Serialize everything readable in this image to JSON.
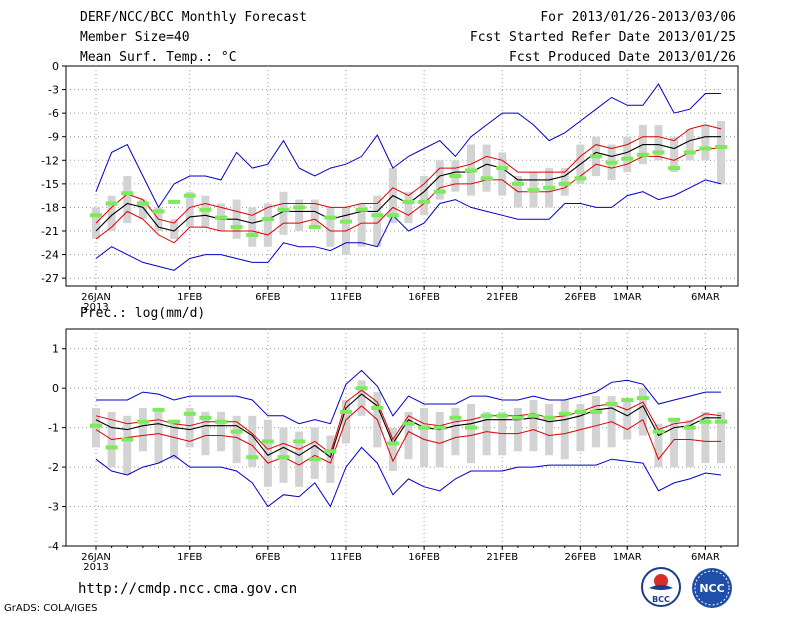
{
  "header": {
    "left": [
      "DERF/NCC/BCC Monthly Forecast",
      "Member Size=40",
      "Mean Surf. Temp.: °C"
    ],
    "right": [
      "For 2013/01/26-2013/03/06",
      "Fcst Started Refer Date 2013/01/25",
      "Fcst Produced Date 2013/01/26"
    ]
  },
  "footer": {
    "url": "http://cmdp.ncc.cma.gov.cn",
    "credit": "GrADS: COLA/IGES",
    "logo_left_text": "BCC",
    "logo_right_text": "NCC"
  },
  "colors": {
    "envelope": "#0000cc",
    "spread": "#dd0000",
    "mean": "#000000",
    "bar": "#d3d3d3",
    "marker": "#7cea5a",
    "grid": "#9a9a9a"
  },
  "chart_data": [
    {
      "type": "line",
      "title": "Mean Surf. Temp.: °C",
      "ylim": [
        -28,
        0
      ],
      "yticks": [
        0,
        -3,
        -6,
        -9,
        -12,
        -15,
        -18,
        -21,
        -24,
        -27
      ],
      "x_days": 40,
      "xticks": [
        {
          "day": 0,
          "label": "26JAN",
          "sub": "2013"
        },
        {
          "day": 6,
          "label": "1FEB"
        },
        {
          "day": 11,
          "label": "6FEB"
        },
        {
          "day": 16,
          "label": "11FEB"
        },
        {
          "day": 21,
          "label": "16FEB"
        },
        {
          "day": 26,
          "label": "21FEB"
        },
        {
          "day": 31,
          "label": "26FEB"
        },
        {
          "day": 34,
          "label": "1MAR"
        },
        {
          "day": 39,
          "label": "6MAR"
        }
      ],
      "series": [
        {
          "name": "max",
          "values": [
            -16,
            -11,
            -10,
            -14,
            -18,
            -15,
            -14,
            -14,
            -14.5,
            -11,
            -13,
            -12.5,
            -9.5,
            -13,
            -14,
            -13,
            -12.5,
            -11.5,
            -8.8,
            -13,
            -11.5,
            -10.5,
            -9.5,
            -11.5,
            -9,
            -7.5,
            -6,
            -6,
            -7.5,
            -9.5,
            -8.5,
            -7,
            -5.5,
            -4,
            -5,
            -5,
            -2.3,
            -6,
            -5.5,
            -3.5,
            -3.5
          ]
        },
        {
          "name": "upper",
          "values": [
            -20,
            -18,
            -16.3,
            -17,
            -19.5,
            -20,
            -18,
            -17.5,
            -18,
            -18.5,
            -19,
            -18,
            -17.5,
            -17.5,
            -17.5,
            -18,
            -18,
            -17.5,
            -17.5,
            -15.5,
            -16.5,
            -15,
            -13,
            -13,
            -12.5,
            -11.5,
            -12,
            -13.5,
            -13.5,
            -13.5,
            -13.5,
            -11.5,
            -10,
            -10.5,
            -10,
            -9,
            -9,
            -9.5,
            -8,
            -7.5,
            -8
          ]
        },
        {
          "name": "mean",
          "values": [
            -21,
            -19,
            -17.5,
            -18,
            -20.5,
            -21,
            -19.2,
            -19,
            -19.5,
            -19.5,
            -20,
            -19.5,
            -18.5,
            -18.5,
            -18.5,
            -19.5,
            -19,
            -18.5,
            -18.5,
            -16.5,
            -17.5,
            -16,
            -14,
            -13.5,
            -13.5,
            -12.5,
            -13,
            -14.5,
            -14.5,
            -14.5,
            -14,
            -12.5,
            -11,
            -11.5,
            -11,
            -10,
            -10,
            -10.5,
            -9.5,
            -9,
            -9
          ]
        },
        {
          "name": "lower",
          "values": [
            -22,
            -20.5,
            -18.5,
            -19.5,
            -21.5,
            -22.5,
            -20.5,
            -20.5,
            -21,
            -21,
            -21,
            -21.5,
            -20,
            -20,
            -19.5,
            -21,
            -21,
            -20,
            -20,
            -18,
            -19,
            -17.5,
            -15.5,
            -15,
            -15,
            -14.5,
            -14.5,
            -16,
            -16,
            -16,
            -15.5,
            -14,
            -12.5,
            -13,
            -12.5,
            -11.5,
            -11.5,
            -12,
            -11,
            -10.5,
            -10.5
          ]
        },
        {
          "name": "min",
          "values": [
            -24.5,
            -23,
            -24,
            -25,
            -25.5,
            -26,
            -24.5,
            -24,
            -24,
            -24.5,
            -25,
            -25,
            -22.5,
            -23,
            -23,
            -23.5,
            -22.5,
            -22.5,
            -23,
            -19,
            -21,
            -20,
            -17.5,
            -17,
            -18,
            -18.5,
            -19,
            -19.5,
            -19.5,
            -19.5,
            -17.5,
            -17.5,
            -18,
            -18,
            -16.5,
            -16,
            -17,
            -16.5,
            -15.5,
            -14.5,
            -15
          ]
        }
      ],
      "bars": [
        [
          -22,
          -18
        ],
        [
          -21,
          -16.5
        ],
        [
          -20,
          -14
        ],
        [
          -19.5,
          -17
        ],
        [
          -21,
          -18
        ],
        [
          -22,
          -19.5
        ],
        [
          -20.5,
          -16
        ],
        [
          -20.5,
          -16.5
        ],
        [
          -21,
          -17.5
        ],
        [
          -22,
          -17
        ],
        [
          -23,
          -18
        ],
        [
          -23,
          -17.5
        ],
        [
          -21.5,
          -16
        ],
        [
          -21,
          -17
        ],
        [
          -20.5,
          -17
        ],
        [
          -23,
          -18
        ],
        [
          -24,
          -18
        ],
        [
          -23,
          -17.5
        ],
        [
          -23,
          -16.5
        ],
        [
          -20,
          -13
        ],
        [
          -20,
          -16
        ],
        [
          -19,
          -14
        ],
        [
          -17,
          -12
        ],
        [
          -16,
          -12
        ],
        [
          -16.5,
          -10
        ],
        [
          -16,
          -10
        ],
        [
          -16.5,
          -11
        ],
        [
          -18,
          -14
        ],
        [
          -18,
          -13.5
        ],
        [
          -18,
          -13
        ],
        [
          -16.5,
          -13
        ],
        [
          -15,
          -10
        ],
        [
          -14,
          -9
        ],
        [
          -14.5,
          -10
        ],
        [
          -13.5,
          -9
        ],
        [
          -12.5,
          -7.5
        ],
        [
          -12,
          -7.5
        ],
        [
          -13.5,
          -9
        ],
        [
          -12,
          -8
        ],
        [
          -12,
          -7.5
        ],
        [
          -15,
          -7
        ]
      ],
      "markers": [
        -19,
        -17.5,
        -16.2,
        -17.5,
        -18.5,
        -17.3,
        -16.5,
        -18.3,
        -19.3,
        -20.5,
        -21.5,
        -19.5,
        -18.3,
        -18,
        -20.5,
        -19.3,
        -19.8,
        -18.3,
        -19,
        -19,
        -17.3,
        -17.3,
        -16,
        -14,
        -13.3,
        -14.3,
        -13,
        -15,
        -15.8,
        -15.5,
        -15,
        -14.3,
        -11.5,
        -12.3,
        -11.8,
        -11.3,
        -11,
        -13,
        -11,
        -10.5,
        -10.3
      ]
    },
    {
      "type": "line",
      "title": "Prec.: log(mm/d)",
      "ylim": [
        -4,
        1.5
      ],
      "yticks": [
        1,
        0,
        -1,
        -2,
        -3,
        -4
      ],
      "x_days": 40,
      "xticks": [
        {
          "day": 0,
          "label": "26JAN",
          "sub": "2013"
        },
        {
          "day": 6,
          "label": "1FEB"
        },
        {
          "day": 11,
          "label": "6FEB"
        },
        {
          "day": 16,
          "label": "11FEB"
        },
        {
          "day": 21,
          "label": "16FEB"
        },
        {
          "day": 26,
          "label": "21FEB"
        },
        {
          "day": 31,
          "label": "26FEB"
        },
        {
          "day": 34,
          "label": "1MAR"
        },
        {
          "day": 39,
          "label": "6MAR"
        }
      ],
      "series": [
        {
          "name": "max",
          "values": [
            -0.3,
            -0.3,
            -0.3,
            -0.1,
            -0.15,
            -0.3,
            -0.2,
            -0.2,
            -0.2,
            -0.2,
            -0.3,
            -0.7,
            -0.7,
            -0.9,
            -0.8,
            -0.9,
            0.1,
            0.45,
            0.05,
            -0.7,
            -0.2,
            -0.4,
            -0.4,
            -0.4,
            -0.2,
            -0.2,
            -0.3,
            -0.3,
            -0.2,
            -0.3,
            -0.3,
            -0.2,
            -0.1,
            0.15,
            0.2,
            0.1,
            -0.4,
            -0.3,
            -0.2,
            -0.1,
            -0.1
          ]
        },
        {
          "name": "upper",
          "values": [
            -0.7,
            -0.8,
            -0.9,
            -0.85,
            -0.8,
            -0.9,
            -0.95,
            -0.85,
            -0.85,
            -0.85,
            -1.15,
            -1.55,
            -1.4,
            -1.55,
            -1.35,
            -1.65,
            -0.35,
            -0.05,
            -0.35,
            -1.3,
            -0.7,
            -0.9,
            -0.95,
            -0.85,
            -0.8,
            -0.7,
            -0.7,
            -0.7,
            -0.65,
            -0.75,
            -0.7,
            -0.6,
            -0.45,
            -0.4,
            -0.55,
            -0.35,
            -1.05,
            -0.9,
            -0.85,
            -0.65,
            -0.7
          ]
        },
        {
          "name": "mean",
          "values": [
            -0.8,
            -1.0,
            -1.05,
            -0.95,
            -0.9,
            -1.0,
            -1.05,
            -0.95,
            -0.95,
            -0.95,
            -1.2,
            -1.7,
            -1.5,
            -1.7,
            -1.45,
            -1.75,
            -0.5,
            -0.15,
            -0.45,
            -1.4,
            -0.8,
            -1.0,
            -1.05,
            -0.95,
            -0.9,
            -0.8,
            -0.8,
            -0.8,
            -0.75,
            -0.85,
            -0.8,
            -0.7,
            -0.55,
            -0.5,
            -0.7,
            -0.45,
            -1.2,
            -1.0,
            -0.95,
            -0.75,
            -0.75
          ]
        },
        {
          "name": "lower",
          "values": [
            -1.05,
            -1.3,
            -1.25,
            -1.2,
            -1.15,
            -1.25,
            -1.35,
            -1.2,
            -1.2,
            -1.25,
            -1.45,
            -1.9,
            -1.75,
            -1.95,
            -1.7,
            -1.9,
            -0.8,
            -0.45,
            -0.8,
            -1.85,
            -1.1,
            -1.3,
            -1.4,
            -1.25,
            -1.2,
            -1.1,
            -1.15,
            -1.15,
            -1.05,
            -1.2,
            -1.15,
            -1.05,
            -0.95,
            -0.85,
            -1.05,
            -0.8,
            -1.8,
            -1.3,
            -1.3,
            -1.35,
            -1.35
          ]
        },
        {
          "name": "min",
          "values": [
            -1.8,
            -2.1,
            -2.2,
            -2.0,
            -1.9,
            -1.7,
            -2.0,
            -2.0,
            -2.0,
            -2.1,
            -2.4,
            -3.0,
            -2.7,
            -2.75,
            -2.4,
            -3.0,
            -2.0,
            -1.5,
            -1.9,
            -2.7,
            -2.3,
            -2.5,
            -2.6,
            -2.3,
            -2.1,
            -2.1,
            -2.1,
            -2.0,
            -2.0,
            -1.95,
            -1.95,
            -1.95,
            -1.95,
            -1.8,
            -1.85,
            -1.9,
            -2.6,
            -2.4,
            -2.3,
            -2.15,
            -2.2
          ]
        }
      ],
      "bars": [
        [
          -1.5,
          -0.5
        ],
        [
          -2.0,
          -0.6
        ],
        [
          -2.2,
          -0.7
        ],
        [
          -1.6,
          -0.5
        ],
        [
          -1.9,
          -0.6
        ],
        [
          -1.8,
          -0.8
        ],
        [
          -1.5,
          -0.5
        ],
        [
          -1.7,
          -0.6
        ],
        [
          -1.6,
          -0.6
        ],
        [
          -1.9,
          -0.7
        ],
        [
          -2.0,
          -0.7
        ],
        [
          -2.5,
          -0.8
        ],
        [
          -2.4,
          -1.0
        ],
        [
          -2.5,
          -1.1
        ],
        [
          -2.3,
          -1.0
        ],
        [
          -2.4,
          -1.2
        ],
        [
          -1.4,
          -0.3
        ],
        [
          -0.7,
          0.2
        ],
        [
          -1.5,
          -0.1
        ],
        [
          -2.1,
          -1.0
        ],
        [
          -1.8,
          -0.6
        ],
        [
          -2.0,
          -0.5
        ],
        [
          -2.0,
          -0.6
        ],
        [
          -1.7,
          -0.5
        ],
        [
          -1.9,
          -0.4
        ],
        [
          -1.7,
          -0.6
        ],
        [
          -1.7,
          -0.6
        ],
        [
          -1.6,
          -0.5
        ],
        [
          -1.6,
          -0.3
        ],
        [
          -1.7,
          -0.4
        ],
        [
          -1.8,
          -0.3
        ],
        [
          -1.6,
          -0.4
        ],
        [
          -1.5,
          -0.2
        ],
        [
          -1.5,
          -0.2
        ],
        [
          -1.3,
          -0.3
        ],
        [
          -1.2,
          0.0
        ],
        [
          -2.0,
          -0.9
        ],
        [
          -2.0,
          -0.8
        ],
        [
          -2.0,
          -0.8
        ],
        [
          -1.9,
          -0.6
        ],
        [
          -1.9,
          -0.6
        ]
      ],
      "markers": [
        -0.95,
        -1.5,
        -1.3,
        -0.85,
        -0.55,
        -0.85,
        -0.65,
        -0.75,
        -0.85,
        -1.1,
        -1.75,
        -1.35,
        -1.75,
        -1.35,
        -1.8,
        -1.6,
        -0.6,
        0.0,
        -0.5,
        -1.4,
        -0.9,
        -1.0,
        -1.0,
        -0.75,
        -1.0,
        -0.7,
        -0.7,
        -0.75,
        -0.7,
        -0.75,
        -0.65,
        -0.6,
        -0.6,
        -0.4,
        -0.3,
        -0.25,
        -1.1,
        -0.8,
        -1.0,
        -0.85,
        -0.85
      ]
    }
  ]
}
